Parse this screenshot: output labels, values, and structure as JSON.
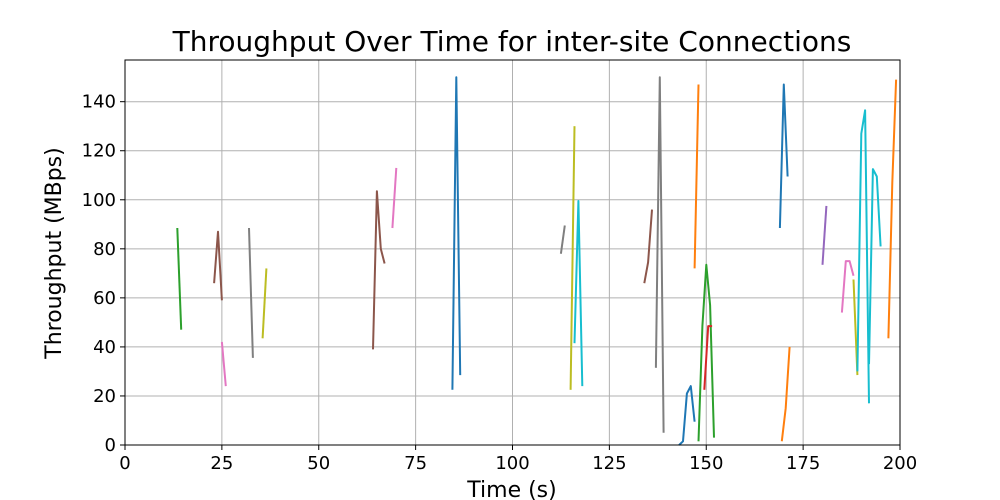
{
  "chart_data": {
    "type": "line",
    "title": "Throughput Over Time for inter-site Connections",
    "xlabel": "Time (s)",
    "ylabel": "Throughput (MBps)",
    "xlim": [
      0,
      200
    ],
    "ylim": [
      0,
      157
    ],
    "xticks": [
      0,
      25,
      50,
      75,
      100,
      125,
      150,
      175,
      200
    ],
    "yticks": [
      0,
      20,
      40,
      60,
      80,
      100,
      120,
      140
    ],
    "grid": true,
    "legend": "none",
    "series": [
      {
        "color": "#2ca02c",
        "x": [
          13.5,
          14.5
        ],
        "y": [
          88.5,
          47
        ]
      },
      {
        "color": "#8c564b",
        "x": [
          23,
          24,
          25
        ],
        "y": [
          66,
          87,
          59
        ]
      },
      {
        "color": "#e377c2",
        "x": [
          25,
          26
        ],
        "y": [
          42,
          24
        ]
      },
      {
        "color": "#7f7f7f",
        "x": [
          32,
          33
        ],
        "y": [
          88.5,
          35.5
        ]
      },
      {
        "color": "#bcbd22",
        "x": [
          35.5,
          36.5
        ],
        "y": [
          43.5,
          72
        ]
      },
      {
        "color": "#8c564b",
        "x": [
          64,
          65,
          66,
          67
        ],
        "y": [
          39,
          103.5,
          80,
          74
        ]
      },
      {
        "color": "#e377c2",
        "x": [
          69,
          70
        ],
        "y": [
          88.5,
          113
        ]
      },
      {
        "color": "#1f77b4",
        "x": [
          84.5,
          85.5,
          86.5
        ],
        "y": [
          22.5,
          150,
          28.5
        ]
      },
      {
        "color": "#7f7f7f",
        "x": [
          112.5,
          113.5
        ],
        "y": [
          78,
          89.5
        ]
      },
      {
        "color": "#bcbd22",
        "x": [
          115,
          116
        ],
        "y": [
          22.5,
          130
        ]
      },
      {
        "color": "#17becf",
        "x": [
          116,
          117,
          118
        ],
        "y": [
          41.5,
          99.5,
          24
        ]
      },
      {
        "color": "#8c564b",
        "x": [
          134,
          135,
          136
        ],
        "y": [
          66,
          74.5,
          96
        ]
      },
      {
        "color": "#7f7f7f",
        "x": [
          137,
          138,
          139
        ],
        "y": [
          31.5,
          150,
          5
        ]
      },
      {
        "color": "#1f77b4",
        "x": [
          143,
          144,
          145,
          146,
          147
        ],
        "y": [
          0,
          1.5,
          21,
          24,
          9.5
        ]
      },
      {
        "color": "#ff7f0e",
        "x": [
          147,
          148
        ],
        "y": [
          72,
          147
        ]
      },
      {
        "color": "#2ca02c",
        "x": [
          148,
          149,
          150,
          151,
          152
        ],
        "y": [
          1.5,
          48.5,
          73.5,
          57,
          3
        ]
      },
      {
        "color": "#d62728",
        "x": [
          149.5,
          150.5,
          151.5
        ],
        "y": [
          22.5,
          48.5,
          48.5
        ]
      },
      {
        "color": "#1f77b4",
        "x": [
          169,
          170,
          171
        ],
        "y": [
          88.5,
          147,
          109.5
        ]
      },
      {
        "color": "#ff7f0e",
        "x": [
          169.5,
          170.5,
          171.5
        ],
        "y": [
          1.5,
          15,
          40
        ]
      },
      {
        "color": "#9467bd",
        "x": [
          180,
          181
        ],
        "y": [
          73.5,
          97.5
        ]
      },
      {
        "color": "#e377c2",
        "x": [
          185,
          186,
          187,
          188
        ],
        "y": [
          54,
          75,
          75,
          69
        ]
      },
      {
        "color": "#bcbd22",
        "x": [
          188,
          189
        ],
        "y": [
          67.5,
          28.5
        ]
      },
      {
        "color": "#17becf",
        "x": [
          189,
          190,
          191,
          192
        ],
        "y": [
          30,
          127,
          136.5,
          17
        ]
      },
      {
        "color": "#17becf",
        "x": [
          192,
          193,
          194,
          195
        ],
        "y": [
          33,
          112.5,
          109.5,
          81
        ]
      },
      {
        "color": "#ff7f0e",
        "x": [
          197,
          198,
          199
        ],
        "y": [
          43.5,
          107,
          149
        ]
      }
    ]
  }
}
